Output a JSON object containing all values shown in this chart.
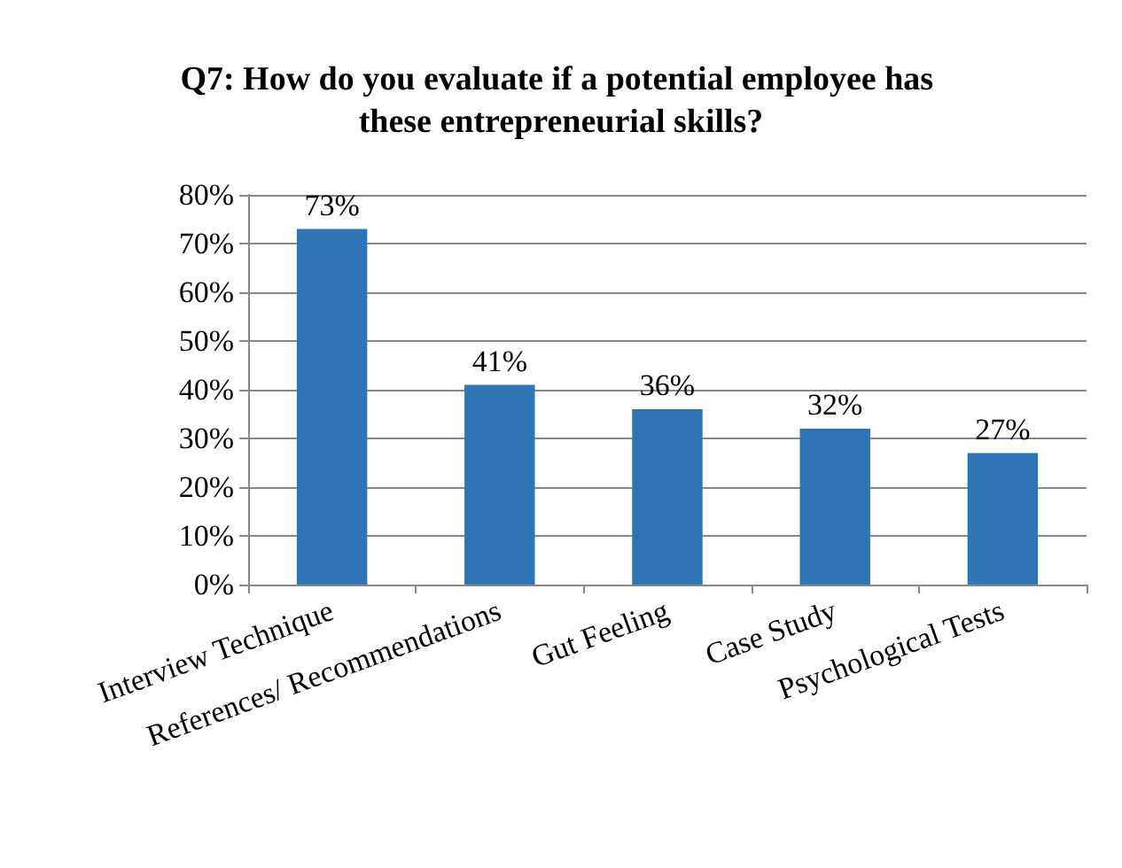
{
  "chart_data": {
    "type": "bar",
    "title": "Q7: How do you evaluate if a potential employee has these entrepreneurial skills?",
    "categories": [
      "Interview Technique",
      "References/ Recommendations",
      "Gut Feeling",
      "Case Study",
      "Psychological Tests"
    ],
    "values": [
      73,
      41,
      36,
      32,
      27
    ],
    "color": "#2e75b6",
    "value_labels": [
      "73%",
      "41%",
      "36%",
      "32%",
      "27%"
    ],
    "ylim": [
      0,
      80
    ],
    "yticks": [
      {
        "value": 0,
        "label": "0%"
      },
      {
        "value": 10,
        "label": "10%"
      },
      {
        "value": 20,
        "label": "20%"
      },
      {
        "value": 30,
        "label": "30%"
      },
      {
        "value": 40,
        "label": "40%"
      },
      {
        "value": 50,
        "label": "50%"
      },
      {
        "value": 60,
        "label": "60%"
      },
      {
        "value": 70,
        "label": "70%"
      },
      {
        "value": 80,
        "label": "80%"
      }
    ],
    "grid": true
  }
}
